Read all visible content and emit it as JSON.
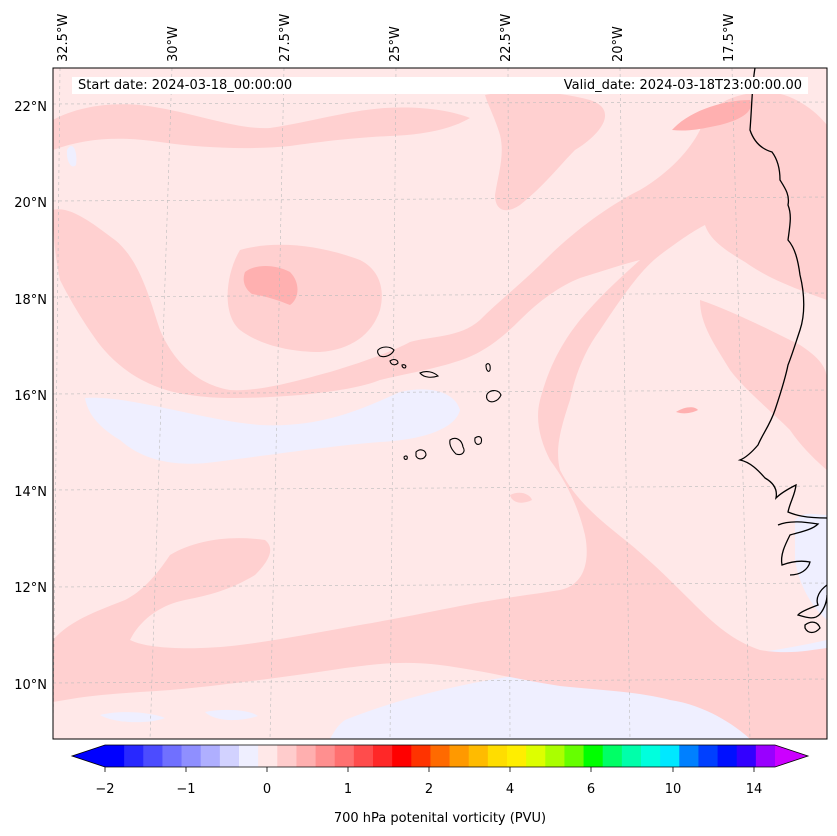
{
  "map": {
    "start_date": "Start date: 2024-03-18_00:00:00",
    "valid_date": "Valid_date: 2024-03-18T23:00:00.00",
    "lon_labels": [
      "32.5°W",
      "30°W",
      "27.5°W",
      "25°W",
      "22.5°W",
      "20°W",
      "17.5°W"
    ],
    "lat_labels": [
      "22°N",
      "20°N",
      "18°N",
      "16°N",
      "14°N",
      "12°N",
      "10°N"
    ],
    "colorbar": {
      "label": "700 hPa potenital vorticity (PVU)",
      "ticks": [
        "−2",
        "−1",
        "0",
        "1",
        "2",
        "4",
        "6",
        "10",
        "14"
      ],
      "colors": [
        "#0000ff",
        "#2828ff",
        "#4c4cff",
        "#7070ff",
        "#8f8fff",
        "#afafff",
        "#d2d2ff",
        "#efefff",
        "#ffe8e8",
        "#ffcccc",
        "#ffafaf",
        "#ff8f8f",
        "#ff7070",
        "#ff4c4c",
        "#ff2828",
        "#ff0000",
        "#ff3300",
        "#ff6a00",
        "#ff9900",
        "#ffbb00",
        "#ffdd00",
        "#ffee00",
        "#ddff00",
        "#aaff00",
        "#66ff00",
        "#00ff00",
        "#00ff66",
        "#00ffaa",
        "#00ffdd",
        "#00e8ff",
        "#0080ff",
        "#0040ff",
        "#0010ff",
        "#3300ff",
        "#9900ff"
      ],
      "extend_low_color": "#0000ff",
      "extend_high_color": "#cc00ff"
    },
    "fill_colors": {
      "background": "#ffe8e8",
      "band_light": "#ffd0d0",
      "band_mid": "#ffb0b0",
      "negative": "#efefff"
    }
  }
}
